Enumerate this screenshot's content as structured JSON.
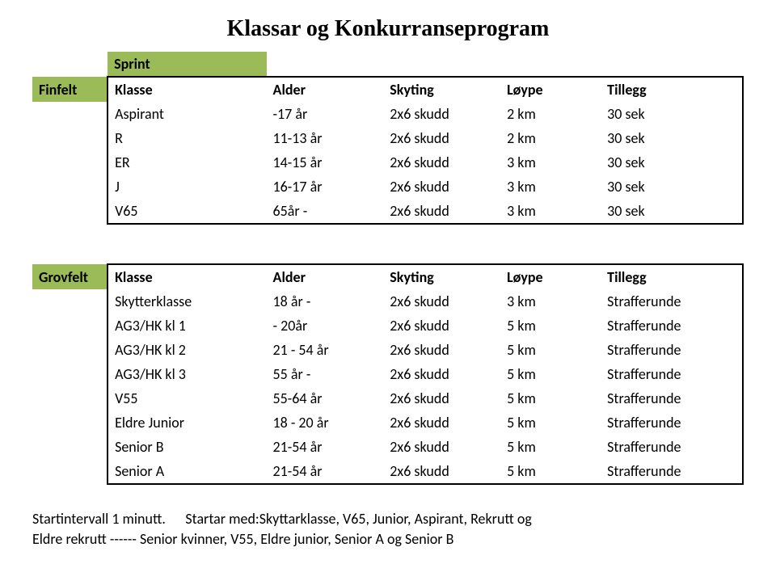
{
  "title": "Klassar og Konkurranseprogram",
  "sprint_label": "Sprint",
  "finfelt_label": "Finfelt",
  "grovfelt_label": "Grovfelt",
  "headers": {
    "klasse": "Klasse",
    "alder": "Alder",
    "skyting": "Skyting",
    "loype": "Løype",
    "tillegg": "Tillegg"
  },
  "finfelt_rows": [
    {
      "klasse": "Aspirant",
      "alder": "-17 år",
      "skyting": "2x6 skudd",
      "loype": "2 km",
      "tillegg": "30 sek"
    },
    {
      "klasse": "R",
      "alder": "11-13 år",
      "skyting": "2x6 skudd",
      "loype": "2 km",
      "tillegg": "30 sek"
    },
    {
      "klasse": "ER",
      "alder": "14-15 år",
      "skyting": "2x6 skudd",
      "loype": "3 km",
      "tillegg": "30 sek"
    },
    {
      "klasse": "J",
      "alder": "16-17 år",
      "skyting": "2x6 skudd",
      "loype": "3 km",
      "tillegg": "30 sek"
    },
    {
      "klasse": "V65",
      "alder": "65år -",
      "skyting": "2x6 skudd",
      "loype": "3 km",
      "tillegg": "30 sek"
    }
  ],
  "grovfelt_rows": [
    {
      "klasse": "Skytterklasse",
      "alder": "18 år -",
      "skyting": "2x6 skudd",
      "loype": "3 km",
      "tillegg": "Strafferunde"
    },
    {
      "klasse": "AG3/HK kl 1",
      "alder": "   - 20år",
      "skyting": "2x6 skudd",
      "loype": "5 km",
      "tillegg": "Strafferunde"
    },
    {
      "klasse": "AG3/HK kl 2",
      "alder": "21 - 54 år",
      "skyting": "2x6 skudd",
      "loype": "5 km",
      "tillegg": "Strafferunde"
    },
    {
      "klasse": "AG3/HK kl 3",
      "alder": "55 år -",
      "skyting": "2x6 skudd",
      "loype": "5 km",
      "tillegg": "Strafferunde"
    },
    {
      "klasse": "V55",
      "alder": "55-64 år",
      "skyting": "2x6 skudd",
      "loype": "5 km",
      "tillegg": "Strafferunde"
    },
    {
      "klasse": "Eldre Junior",
      "alder": "18 - 20 år",
      "skyting": "2x6 skudd",
      "loype": "5 km",
      "tillegg": "Strafferunde"
    },
    {
      "klasse": "Senior B",
      "alder": "21-54 år",
      "skyting": "2x6 skudd",
      "loype": "5 km",
      "tillegg": "Strafferunde"
    },
    {
      "klasse": "Senior A",
      "alder": "21-54 år",
      "skyting": "2x6 skudd",
      "loype": "5 km",
      "tillegg": "Strafferunde"
    }
  ],
  "footer": {
    "line1a": "Startintervall 1 minutt.",
    "line1b": "Startar med:Skyttarklasse, V65, Junior, Aspirant, Rekrutt og",
    "line2": "Eldre rekrutt ------  Senior kvinner, V55, Eldre junior, Senior A og Senior B"
  },
  "colors": {
    "green": "#9bbb59",
    "border": "#000000",
    "background": "#ffffff",
    "text": "#000000"
  }
}
